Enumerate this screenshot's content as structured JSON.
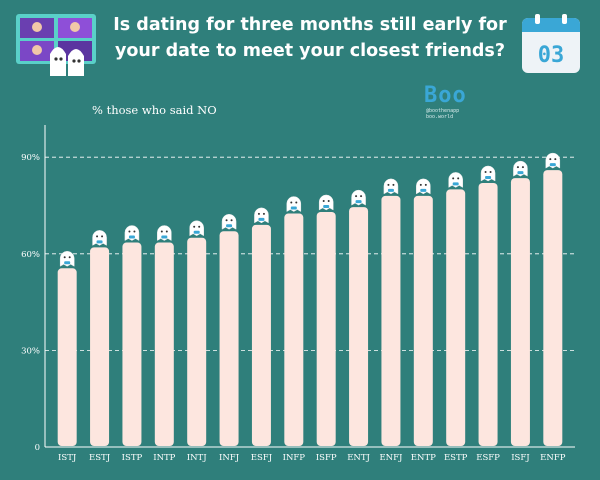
{
  "header": {
    "title_line1": "Is dating for three months still early for",
    "title_line2": "your date to meet your closest friends?",
    "calendar_number": "03"
  },
  "brand": {
    "logo": "Boo",
    "line1": "@boothenapp",
    "line2": "boo.world"
  },
  "colors": {
    "background": "#2f7f7b",
    "bar": "#fde6df",
    "accent": "#3aa7d6",
    "grid": "#ffffff"
  },
  "chart_data": {
    "type": "bar",
    "title": "",
    "ylabel": "%  those who said NO",
    "xlabel": "",
    "categories": [
      "ISTJ",
      "ESTJ",
      "ISTP",
      "INTP",
      "INTJ",
      "INFJ",
      "ESFJ",
      "INFP",
      "ISFP",
      "ENTJ",
      "ENFJ",
      "ENTP",
      "ESTP",
      "ESFP",
      "ISFJ",
      "ENFP"
    ],
    "values": [
      55.5,
      62,
      63.5,
      63.5,
      65,
      67,
      69,
      72.5,
      73,
      74.5,
      78,
      78,
      80,
      82,
      83.5,
      86
    ],
    "ylim": [
      0,
      100
    ],
    "yticks": [
      0,
      30,
      60,
      90
    ],
    "ytick_labels": [
      "0",
      "30%",
      "60%",
      "90%"
    ],
    "grid": "dashed horizontal",
    "legend": "none"
  }
}
